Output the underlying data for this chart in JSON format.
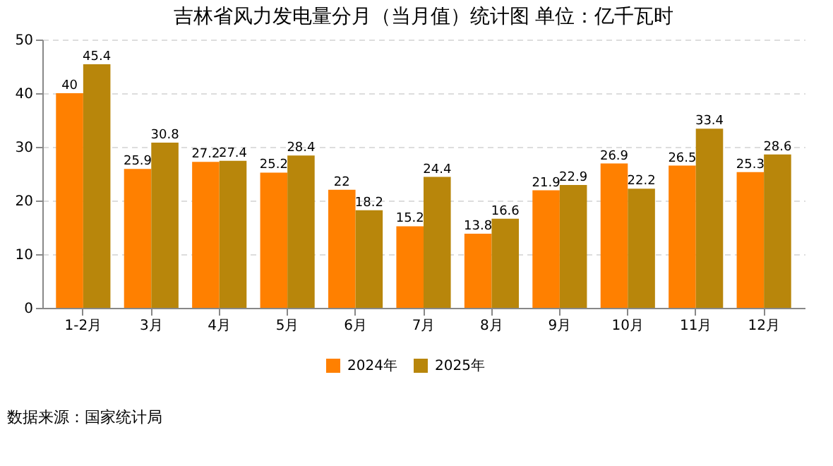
{
  "chart_data": {
    "type": "bar",
    "title": "吉林省风力发电量分月（当月值）统计图  单位：亿千瓦时",
    "categories": [
      "1-2月",
      "3月",
      "4月",
      "5月",
      "6月",
      "7月",
      "8月",
      "9月",
      "10月",
      "11月",
      "12月"
    ],
    "series": [
      {
        "name": "2024年",
        "color": "#ff8000",
        "values": [
          40,
          25.9,
          27.2,
          25.2,
          22,
          15.2,
          13.8,
          21.9,
          26.9,
          26.5,
          25.3
        ]
      },
      {
        "name": "2025年",
        "color": "#b8860b",
        "values": [
          45.4,
          30.8,
          27.4,
          28.4,
          18.2,
          24.4,
          16.6,
          22.9,
          22.2,
          33.4,
          28.6
        ]
      }
    ],
    "ylim": [
      0,
      50
    ],
    "yticks": [
      0,
      10,
      20,
      30,
      40,
      50
    ],
    "grid": "y",
    "legend": "bottom",
    "data_labels": true,
    "annotations": [
      "数据来源：国家统计局"
    ]
  }
}
